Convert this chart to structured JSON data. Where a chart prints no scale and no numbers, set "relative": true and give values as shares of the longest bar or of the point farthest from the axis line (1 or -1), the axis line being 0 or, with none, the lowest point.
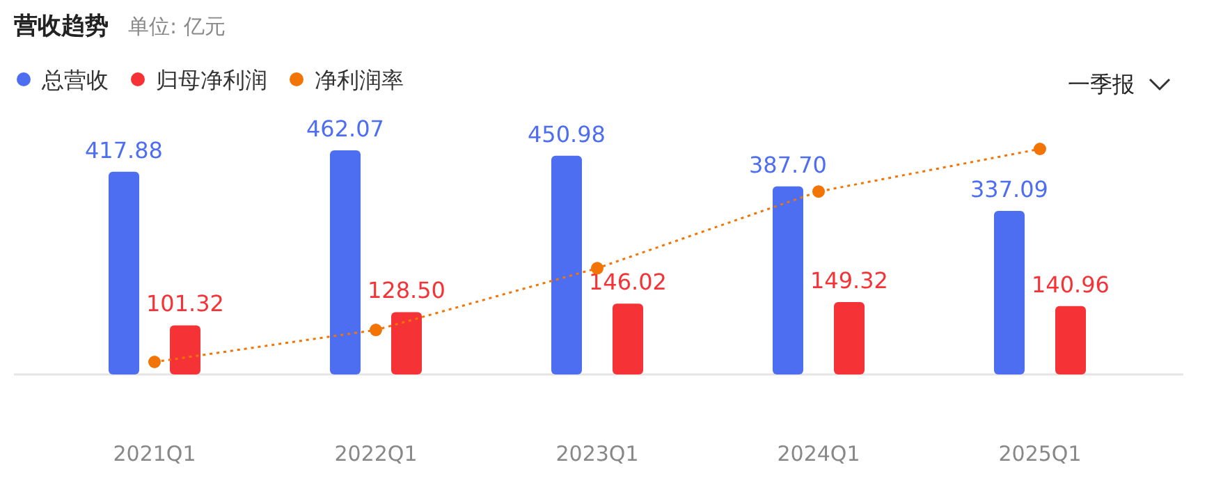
{
  "chart_data": [
    {
      "type": "bar",
      "title": "营收趋势",
      "subtitle": "单位: 亿元",
      "categories": [
        "2021Q1",
        "2022Q1",
        "2023Q1",
        "2024Q1",
        "2025Q1"
      ],
      "series": [
        {
          "name": "总营收",
          "color": "#4e6ef2",
          "values": [
            417.88,
            462.07,
            450.98,
            387.7,
            337.09
          ],
          "value_labels": [
            "417.88",
            "462.07",
            "450.98",
            "387.70",
            "337.09"
          ]
        },
        {
          "name": "归母净利润",
          "color": "#f53337",
          "values": [
            101.32,
            128.5,
            146.02,
            149.32,
            140.96
          ],
          "value_labels": [
            "101.32",
            "128.50",
            "146.02",
            "149.32",
            "140.96"
          ]
        }
      ],
      "legend": "top left",
      "annotations": [
        "一季报"
      ]
    },
    {
      "type": "line",
      "categories": [
        null,
        null,
        null,
        null,
        null
      ],
      "relative": true,
      "marker": "circle",
      "line_style": "dotted",
      "legend": "top left",
      "series": [
        {
          "name": "净利润率",
          "color": "#f27405",
          "values": [
            0,
            0.15,
            0.44,
            0.8,
            1
          ]
        }
      ]
    }
  ]
}
